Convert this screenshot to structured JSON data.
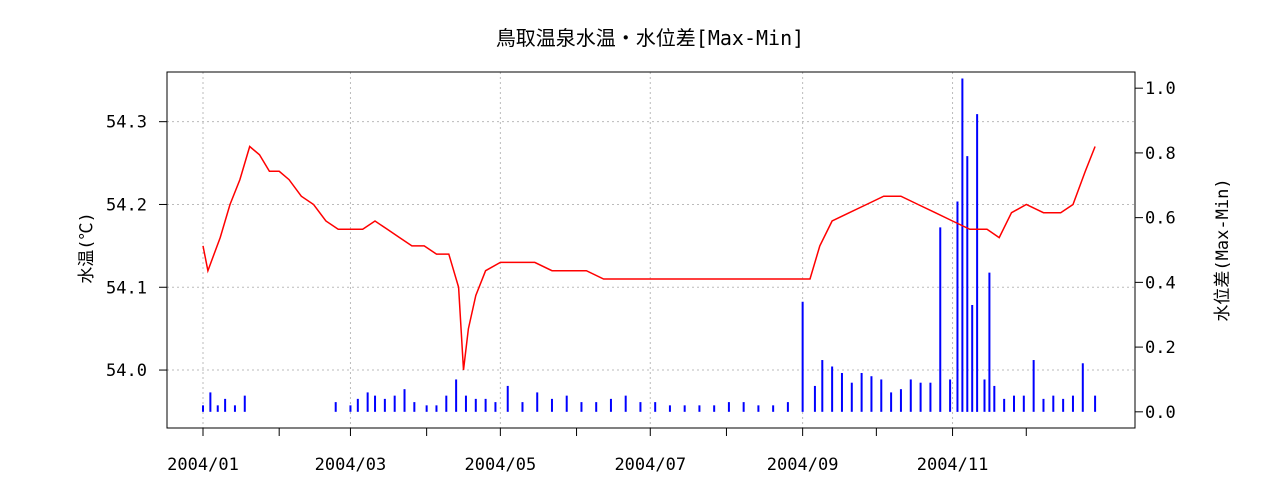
{
  "chart_data": {
    "type": "line",
    "title": "鳥取温泉水温・水位差[Max-Min]",
    "ylabel_left": "水温(℃)",
    "ylabel_right": "水位差(Max-Min)",
    "x_tick_labels": [
      "2004/01",
      "2004/03",
      "2004/05",
      "2004/07",
      "2004/09",
      "2004/11"
    ],
    "x_range": [
      "2004-01-01",
      "2004-12-31"
    ],
    "ylim_left": [
      53.93,
      54.36
    ],
    "ylim_right": [
      -0.05,
      1.05
    ],
    "y_ticks_left": [
      "54.0",
      "54.1",
      "54.2",
      "54.3"
    ],
    "y_ticks_right": [
      "0.0",
      "0.2",
      "0.4",
      "0.6",
      "0.8",
      "1.0"
    ],
    "grid": true,
    "series": [
      {
        "color": "#ff0000",
        "axis": "left",
        "kind": "line",
        "dates": [
          "2004-01-01",
          "2004-01-03",
          "2004-01-08",
          "2004-01-12",
          "2004-01-16",
          "2004-01-20",
          "2004-01-24",
          "2004-01-28",
          "2004-02-01",
          "2004-02-05",
          "2004-02-10",
          "2004-02-15",
          "2004-02-20",
          "2004-02-25",
          "2004-03-01",
          "2004-03-06",
          "2004-03-11",
          "2004-03-16",
          "2004-03-21",
          "2004-03-26",
          "2004-03-31",
          "2004-04-05",
          "2004-04-10",
          "2004-04-14",
          "2004-04-16",
          "2004-04-18",
          "2004-04-21",
          "2004-04-25",
          "2004-05-01",
          "2004-05-08",
          "2004-05-15",
          "2004-05-22",
          "2004-05-29",
          "2004-06-05",
          "2004-06-12",
          "2004-06-19",
          "2004-06-26",
          "2004-07-03",
          "2004-07-10",
          "2004-07-17",
          "2004-07-24",
          "2004-07-31",
          "2004-08-07",
          "2004-08-14",
          "2004-08-21",
          "2004-08-28",
          "2004-09-04",
          "2004-09-08",
          "2004-09-13",
          "2004-09-20",
          "2004-09-27",
          "2004-10-04",
          "2004-10-11",
          "2004-10-18",
          "2004-10-25",
          "2004-11-01",
          "2004-11-08",
          "2004-11-15",
          "2004-11-20",
          "2004-11-25",
          "2004-12-01",
          "2004-12-08",
          "2004-12-15",
          "2004-12-20",
          "2004-12-25",
          "2004-12-29"
        ],
        "values": [
          54.15,
          54.12,
          54.16,
          54.2,
          54.23,
          54.27,
          54.26,
          54.24,
          54.24,
          54.23,
          54.21,
          54.2,
          54.18,
          54.17,
          54.17,
          54.17,
          54.18,
          54.17,
          54.16,
          54.15,
          54.15,
          54.14,
          54.14,
          54.1,
          54.0,
          54.05,
          54.09,
          54.12,
          54.13,
          54.13,
          54.13,
          54.12,
          54.12,
          54.12,
          54.11,
          54.11,
          54.11,
          54.11,
          54.11,
          54.11,
          54.11,
          54.11,
          54.11,
          54.11,
          54.11,
          54.11,
          54.11,
          54.15,
          54.18,
          54.19,
          54.2,
          54.21,
          54.21,
          54.2,
          54.19,
          54.18,
          54.17,
          54.17,
          54.16,
          54.19,
          54.2,
          54.19,
          54.19,
          54.2,
          54.24,
          54.27
        ]
      },
      {
        "color": "#0000ff",
        "axis": "right",
        "kind": "spikes",
        "dates": [
          "2004-01-01",
          "2004-01-04",
          "2004-01-07",
          "2004-01-10",
          "2004-01-14",
          "2004-01-18",
          "2004-02-24",
          "2004-03-01",
          "2004-03-04",
          "2004-03-08",
          "2004-03-11",
          "2004-03-15",
          "2004-03-19",
          "2004-03-23",
          "2004-03-27",
          "2004-04-01",
          "2004-04-05",
          "2004-04-09",
          "2004-04-13",
          "2004-04-17",
          "2004-04-21",
          "2004-04-25",
          "2004-04-29",
          "2004-05-04",
          "2004-05-10",
          "2004-05-16",
          "2004-05-22",
          "2004-05-28",
          "2004-06-03",
          "2004-06-09",
          "2004-06-15",
          "2004-06-21",
          "2004-06-27",
          "2004-07-03",
          "2004-07-09",
          "2004-07-15",
          "2004-07-21",
          "2004-07-27",
          "2004-08-02",
          "2004-08-08",
          "2004-08-14",
          "2004-08-20",
          "2004-08-26",
          "2004-09-01",
          "2004-09-06",
          "2004-09-09",
          "2004-09-13",
          "2004-09-17",
          "2004-09-21",
          "2004-09-25",
          "2004-09-29",
          "2004-10-03",
          "2004-10-07",
          "2004-10-11",
          "2004-10-15",
          "2004-10-19",
          "2004-10-23",
          "2004-10-27",
          "2004-10-31",
          "2004-11-03",
          "2004-11-05",
          "2004-11-07",
          "2004-11-09",
          "2004-11-11",
          "2004-11-14",
          "2004-11-16",
          "2004-11-18",
          "2004-11-22",
          "2004-11-26",
          "2004-11-30",
          "2004-12-04",
          "2004-12-08",
          "2004-12-12",
          "2004-12-16",
          "2004-12-20",
          "2004-12-24",
          "2004-12-29"
        ],
        "values": [
          0.02,
          0.06,
          0.02,
          0.04,
          0.02,
          0.05,
          0.03,
          0.02,
          0.04,
          0.06,
          0.05,
          0.04,
          0.05,
          0.07,
          0.03,
          0.02,
          0.02,
          0.05,
          0.1,
          0.05,
          0.04,
          0.04,
          0.03,
          0.08,
          0.03,
          0.06,
          0.04,
          0.05,
          0.03,
          0.03,
          0.04,
          0.05,
          0.03,
          0.03,
          0.02,
          0.02,
          0.02,
          0.02,
          0.03,
          0.03,
          0.02,
          0.02,
          0.03,
          0.34,
          0.08,
          0.16,
          0.14,
          0.12,
          0.09,
          0.12,
          0.11,
          0.1,
          0.06,
          0.07,
          0.1,
          0.09,
          0.09,
          0.57,
          0.1,
          0.65,
          1.03,
          0.79,
          0.33,
          0.92,
          0.1,
          0.43,
          0.08,
          0.04,
          0.05,
          0.05,
          0.16,
          0.04,
          0.05,
          0.04,
          0.05,
          0.15,
          0.05
        ]
      }
    ]
  }
}
